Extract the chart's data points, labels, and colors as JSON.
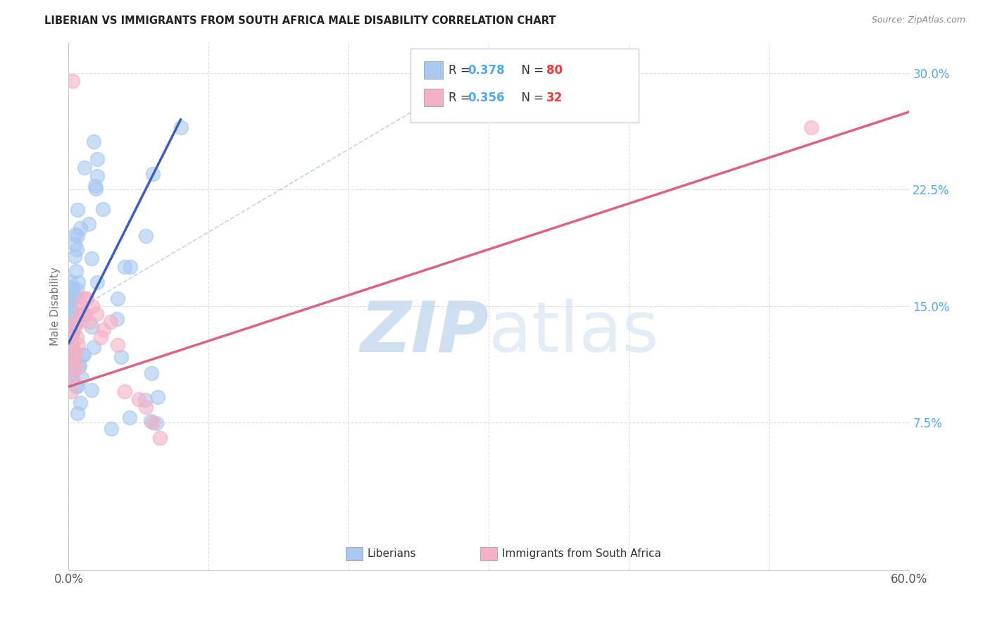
{
  "title": "LIBERIAN VS IMMIGRANTS FROM SOUTH AFRICA MALE DISABILITY CORRELATION CHART",
  "source": "Source: ZipAtlas.com",
  "ylabel": "Male Disability",
  "xlim": [
    0.0,
    0.6
  ],
  "ylim": [
    -0.02,
    0.32
  ],
  "yticks": [
    0.075,
    0.15,
    0.225,
    0.3
  ],
  "ytick_labels": [
    "7.5%",
    "15.0%",
    "22.5%",
    "30.0%"
  ],
  "xticks": [
    0.0,
    0.1,
    0.2,
    0.3,
    0.4,
    0.5,
    0.6
  ],
  "xtick_labels": [
    "0.0%",
    "",
    "",
    "",
    "",
    "",
    "60.0%"
  ],
  "liberian_color": "#a8c8f0",
  "immigrant_color": "#f5b0c5",
  "liberian_line_color": "#3a5fbf",
  "immigrant_line_color": "#e06080",
  "diag_color": "#b8d0e8",
  "legend_R_color": "#4da6ff",
  "legend_N_color": "#ff3333",
  "watermark_ZIP_color": "#c8dcf0",
  "watermark_atlas_color": "#c8dcf0",
  "liberian_R": 0.378,
  "liberian_N": 80,
  "immigrant_R": 0.356,
  "immigrant_N": 32,
  "lib_trend_x0": 0.0,
  "lib_trend_x1": 0.08,
  "lib_trend_y0": 0.126,
  "lib_trend_y1": 0.27,
  "imm_trend_x0": 0.0,
  "imm_trend_x1": 0.6,
  "imm_trend_y0": 0.098,
  "imm_trend_y1": 0.275
}
